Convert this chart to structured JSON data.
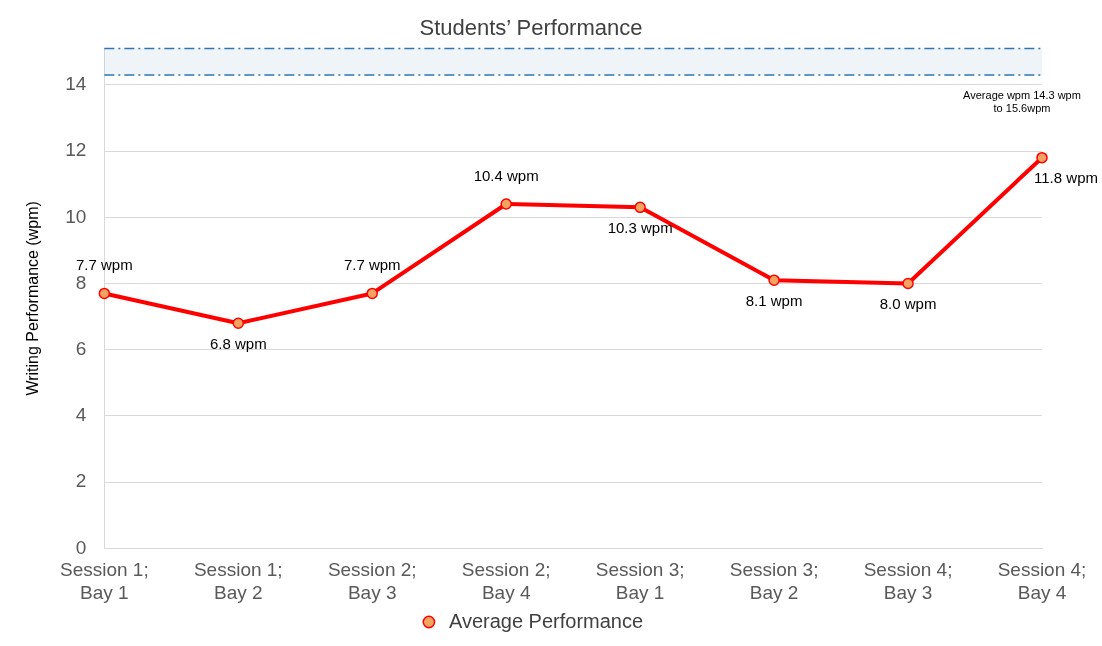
{
  "chart_data": {
    "type": "line",
    "title": "Students’ Performance",
    "ylabel": "Writing Performance (wpm)",
    "categories": [
      "Session 1; Bay 1",
      "Session 1; Bay 2",
      "Session 2; Bay 3",
      "Session 2; Bay 4",
      "Session 3; Bay 1",
      "Session 3; Bay 2",
      "Session 4; Bay 3",
      "Session 4; Bay 4"
    ],
    "series": [
      {
        "name": "Average Performance",
        "color": "#ff0000",
        "values": [
          7.7,
          6.8,
          7.7,
          10.4,
          10.3,
          8.1,
          8.0,
          11.8
        ],
        "value_labels": [
          "7.7 wpm",
          "6.8 wpm",
          "7.7 wpm",
          "10.4 wpm",
          "10.3 wpm",
          "8.1 wpm",
          "8.0 wpm",
          "11.8 wpm"
        ]
      }
    ],
    "ylim": [
      0,
      15.1
    ],
    "yticks": [
      0,
      2,
      4,
      6,
      8,
      10,
      12,
      14
    ],
    "grid": "y",
    "legend": "bottom",
    "marker": "circle",
    "line_style": "solid",
    "bands": [
      {
        "axis": "y",
        "from": 14.3,
        "to": 15.1,
        "color": "#2e75b6"
      }
    ],
    "ref_lines": [
      {
        "axis": "y",
        "value": 14.3,
        "color": "#2e75b6",
        "line_style": "dashed"
      },
      {
        "axis": "y",
        "value": 15.1,
        "color": "#2e75b6",
        "line_style": "dashed"
      }
    ],
    "annotations": [
      "Average wpm 14.3 wpm to 15.6wpm"
    ]
  }
}
